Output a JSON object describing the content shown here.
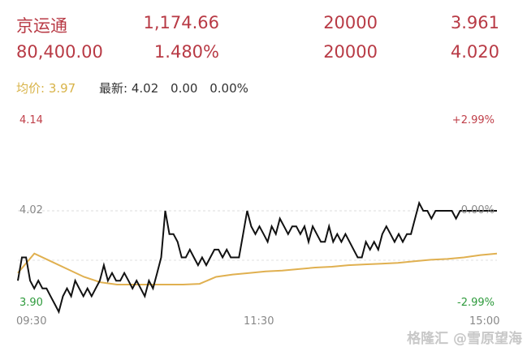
{
  "quote": {
    "row1": [
      "京运通",
      "1,174.66",
      "20000",
      "3.961"
    ],
    "row2": [
      "80,400.00",
      "1.480%",
      "20000",
      "4.020"
    ]
  },
  "info": {
    "avg_label": "均价: 3.97",
    "latest_label": "最新: 4.02",
    "change": "0.00",
    "change_pct": "0.00%"
  },
  "colors": {
    "up": "#c0404a",
    "down": "#2e9a3c",
    "price_line": "#111111",
    "avg_line": "#e0b050"
  },
  "chart_data": {
    "type": "line",
    "ylim": [
      3.9,
      4.14
    ],
    "y_labels_left": [
      "4.14",
      "4.02",
      "3.90"
    ],
    "y_labels_right": [
      "+2.99%",
      "0.00%",
      "-2.99%"
    ],
    "x_labels": [
      "09:30",
      "11:30",
      "15:00"
    ],
    "series": [
      {
        "key": "price",
        "values": [
          3.93,
          3.96,
          3.96,
          3.93,
          3.92,
          3.93,
          3.92,
          3.92,
          3.91,
          3.9,
          3.89,
          3.91,
          3.92,
          3.91,
          3.93,
          3.92,
          3.91,
          3.92,
          3.91,
          3.92,
          3.93,
          3.95,
          3.93,
          3.94,
          3.93,
          3.93,
          3.94,
          3.93,
          3.92,
          3.93,
          3.92,
          3.91,
          3.93,
          3.92,
          3.94,
          3.96,
          4.02,
          3.99,
          3.99,
          3.98,
          3.96,
          3.96,
          3.97,
          3.96,
          3.95,
          3.96,
          3.95,
          3.96,
          3.97,
          3.97,
          3.96,
          3.97,
          3.96,
          3.96,
          3.96,
          3.99,
          4.02,
          4.0,
          3.99,
          4.0,
          3.99,
          3.98,
          4.0,
          3.99,
          4.01,
          4.0,
          3.99,
          4.0,
          4.0,
          3.99,
          4.0,
          3.98,
          4.0,
          3.99,
          3.98,
          3.98,
          4.0,
          3.98,
          3.99,
          3.98,
          3.99,
          3.98,
          3.97,
          3.96,
          3.96,
          3.98,
          3.97,
          3.98,
          3.97,
          3.99,
          4.0,
          3.99,
          3.98,
          3.99,
          3.98,
          3.99,
          3.99,
          4.01,
          4.03,
          4.02,
          4.02,
          4.01,
          4.02,
          4.02,
          4.02,
          4.02,
          4.02,
          4.01,
          4.02,
          4.02,
          4.02,
          4.02,
          4.02,
          4.02,
          4.02,
          4.02,
          4.02,
          4.02
        ]
      },
      {
        "key": "average",
        "values": [
          3.94,
          3.965,
          3.955,
          3.945,
          3.935,
          3.928,
          3.925,
          3.925,
          3.925,
          3.925,
          3.925,
          3.926,
          3.935,
          3.938,
          3.94,
          3.942,
          3.943,
          3.945,
          3.947,
          3.948,
          3.95,
          3.951,
          3.952,
          3.953,
          3.955,
          3.957,
          3.958,
          3.96,
          3.963,
          3.965
        ]
      }
    ]
  },
  "watermark": "格隆汇 @雪原望海"
}
